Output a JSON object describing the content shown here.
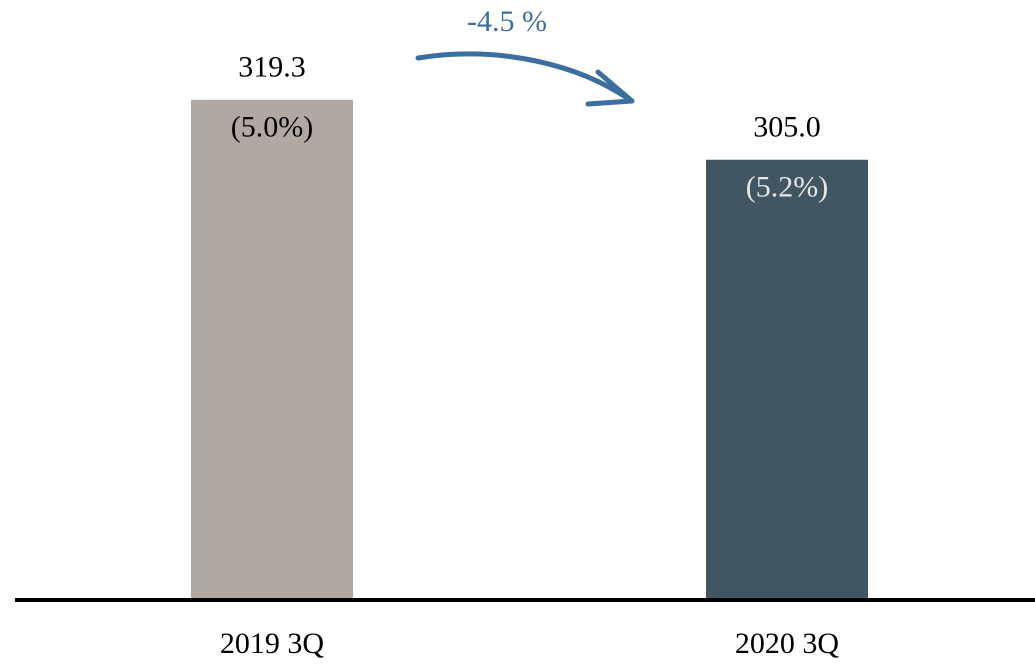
{
  "chart_data": {
    "type": "bar",
    "categories": [
      "2019 3Q",
      "2020 3Q"
    ],
    "values": [
      319.3,
      305.0
    ],
    "value_labels": [
      "319.3",
      "305.0"
    ],
    "share_labels": [
      "(5.0%)",
      "(5.2%)"
    ],
    "colors": [
      "#b0a8a3",
      "#415563"
    ],
    "annotation": "-4.5 %",
    "ylim": [
      200,
      340
    ]
  }
}
